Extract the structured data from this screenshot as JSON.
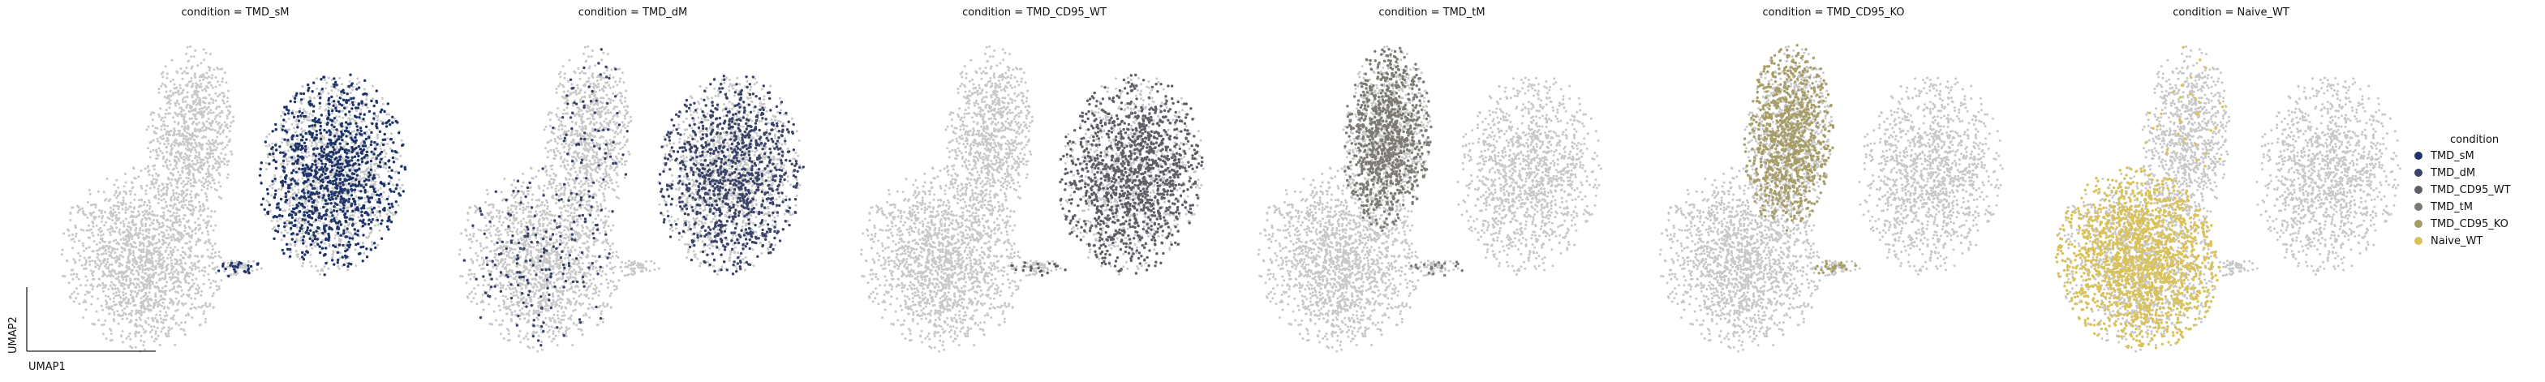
{
  "chart_data": {
    "type": "scatter",
    "embedding": "UMAP",
    "xlabel": "UMAP1",
    "ylabel": "UMAP2",
    "background_color": "#c8c8c8",
    "legend": {
      "title": "condition",
      "placement": "right",
      "entries": [
        {
          "label": "TMD_sM",
          "color": "#1f3469"
        },
        {
          "label": "TMD_dM",
          "color": "#3b4468"
        },
        {
          "label": "TMD_CD95_WT",
          "color": "#5d5e66"
        },
        {
          "label": "TMD_tM",
          "color": "#7c7a72"
        },
        {
          "label": "TMD_CD95_KO",
          "color": "#a79d66"
        },
        {
          "label": "Naive_WT",
          "color": "#d9c259"
        }
      ]
    },
    "panels": [
      {
        "title": "condition = TMD_sM",
        "highlight": "TMD_sM",
        "color": "#1f3469"
      },
      {
        "title": "condition = TMD_dM",
        "highlight": "TMD_dM",
        "color": "#3b4468"
      },
      {
        "title": "condition = TMD_CD95_WT",
        "highlight": "TMD_CD95_WT",
        "color": "#5d5e66"
      },
      {
        "title": "condition = TMD_tM",
        "highlight": "TMD_tM",
        "color": "#7c7a72"
      },
      {
        "title": "condition = TMD_CD95_KO",
        "highlight": "TMD_CD95_KO",
        "color": "#a79d66"
      },
      {
        "title": "condition = Naive_WT",
        "highlight": "Naive_WT",
        "color": "#d9c259"
      }
    ]
  }
}
